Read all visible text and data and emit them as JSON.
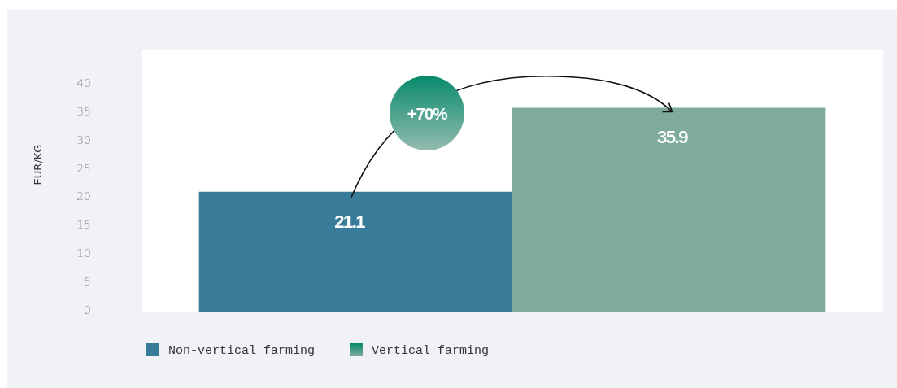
{
  "chart_data": {
    "type": "bar",
    "ylabel": "EUR/KG",
    "categories": [
      null
    ],
    "series": [
      {
        "name": "Non-vertical farming",
        "color": "#387c99",
        "values": [
          21.1
        ]
      },
      {
        "name": "Vertical farming",
        "color": "#7eab9e",
        "values": [
          35.9
        ]
      }
    ],
    "ylim": [
      0,
      46
    ],
    "yticks": [
      0,
      5,
      10,
      15,
      20,
      25,
      30,
      35,
      40
    ],
    "data_labels": true,
    "legend": "bottom",
    "grid": false,
    "annotations": [
      "+70%"
    ]
  }
}
